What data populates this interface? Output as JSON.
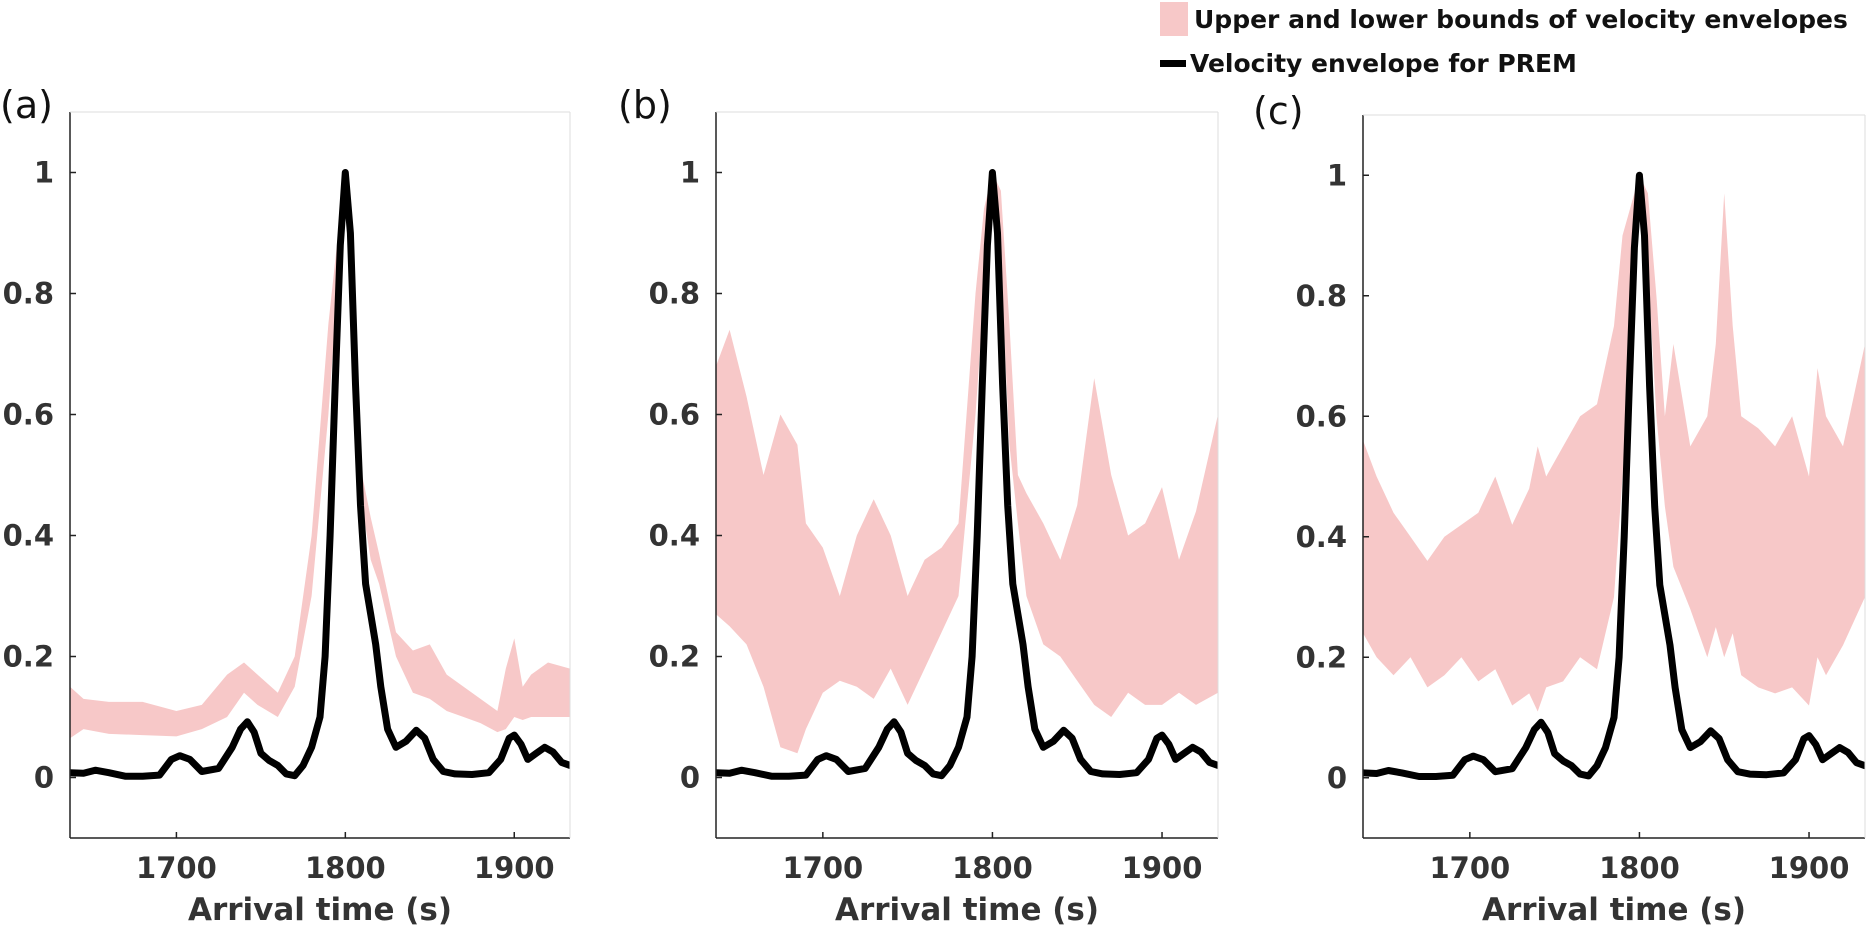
{
  "legend": {
    "band_label": "Upper and lower bounds of velocity envelopes",
    "line_label": "Velocity envelope for PREM"
  },
  "colors": {
    "band": "#f7c8c8",
    "line": "#000000",
    "axis": "#222222",
    "text": "#333333"
  },
  "chart_data": [
    {
      "type": "area",
      "panel_label": "(a)",
      "xlabel": "Arrival time (s)",
      "ylabel": "",
      "xlim": [
        1637,
        1933
      ],
      "ylim": [
        -0.1,
        1.1
      ],
      "xticks": [
        1700,
        1800,
        1900
      ],
      "yticks": [
        0,
        0.2,
        0.4,
        0.6,
        0.8,
        1
      ],
      "ytick_labels": [
        "0",
        "0.2",
        "0.4",
        "0.6",
        "0.8",
        "1"
      ],
      "series": [
        {
          "name": "Upper and lower bounds of velocity envelopes",
          "kind": "band",
          "x": [
            1637,
            1645,
            1660,
            1680,
            1700,
            1715,
            1730,
            1740,
            1748,
            1760,
            1770,
            1780,
            1790,
            1795,
            1800,
            1805,
            1810,
            1815,
            1820,
            1830,
            1840,
            1850,
            1860,
            1870,
            1880,
            1890,
            1895,
            1900,
            1905,
            1910,
            1920,
            1933
          ],
          "lower": [
            0.065,
            0.08,
            0.072,
            0.07,
            0.068,
            0.08,
            0.1,
            0.14,
            0.12,
            0.1,
            0.15,
            0.3,
            0.6,
            0.8,
            0.95,
            0.75,
            0.45,
            0.36,
            0.32,
            0.2,
            0.14,
            0.13,
            0.11,
            0.1,
            0.09,
            0.075,
            0.08,
            0.1,
            0.095,
            0.1,
            0.1,
            0.1
          ],
          "upper": [
            0.15,
            0.13,
            0.125,
            0.125,
            0.11,
            0.12,
            0.17,
            0.19,
            0.17,
            0.14,
            0.2,
            0.4,
            0.75,
            0.88,
            0.99,
            0.85,
            0.5,
            0.43,
            0.37,
            0.24,
            0.21,
            0.22,
            0.17,
            0.15,
            0.13,
            0.11,
            0.18,
            0.23,
            0.15,
            0.17,
            0.19,
            0.18
          ]
        },
        {
          "name": "Velocity envelope for PREM",
          "kind": "line",
          "x": [
            1637,
            1645,
            1652,
            1660,
            1670,
            1680,
            1690,
            1697,
            1702,
            1708,
            1715,
            1725,
            1733,
            1738,
            1742,
            1746,
            1750,
            1755,
            1760,
            1765,
            1770,
            1775,
            1780,
            1785,
            1788,
            1791,
            1794,
            1797,
            1800,
            1803,
            1806,
            1809,
            1812,
            1815,
            1818,
            1821,
            1825,
            1830,
            1836,
            1842,
            1847,
            1852,
            1858,
            1865,
            1875,
            1885,
            1892,
            1897,
            1900,
            1904,
            1908,
            1913,
            1918,
            1923,
            1928,
            1933
          ],
          "y": [
            0.008,
            0.007,
            0.012,
            0.008,
            0.002,
            0.002,
            0.004,
            0.03,
            0.036,
            0.03,
            0.01,
            0.015,
            0.05,
            0.08,
            0.092,
            0.075,
            0.04,
            0.028,
            0.02,
            0.006,
            0.003,
            0.02,
            0.05,
            0.1,
            0.2,
            0.4,
            0.65,
            0.88,
            1.0,
            0.9,
            0.65,
            0.45,
            0.32,
            0.27,
            0.22,
            0.15,
            0.08,
            0.05,
            0.06,
            0.078,
            0.065,
            0.03,
            0.01,
            0.006,
            0.005,
            0.008,
            0.03,
            0.065,
            0.07,
            0.055,
            0.03,
            0.04,
            0.05,
            0.042,
            0.025,
            0.02
          ]
        }
      ]
    },
    {
      "type": "area",
      "panel_label": "(b)",
      "xlabel": "Arrival time (s)",
      "ylabel": "",
      "xlim": [
        1637,
        1933
      ],
      "ylim": [
        -0.1,
        1.1
      ],
      "xticks": [
        1700,
        1800,
        1900
      ],
      "yticks": [
        0,
        0.2,
        0.4,
        0.6,
        0.8,
        1
      ],
      "ytick_labels": [
        "0",
        "0.2",
        "0.4",
        "0.6",
        "0.8",
        "1"
      ],
      "series": [
        {
          "name": "Upper and lower bounds of velocity envelopes",
          "kind": "band",
          "x": [
            1637,
            1645,
            1655,
            1665,
            1675,
            1685,
            1690,
            1700,
            1710,
            1720,
            1730,
            1740,
            1750,
            1760,
            1770,
            1780,
            1790,
            1795,
            1800,
            1805,
            1810,
            1815,
            1820,
            1830,
            1840,
            1850,
            1860,
            1870,
            1880,
            1890,
            1900,
            1910,
            1920,
            1933
          ],
          "lower": [
            0.27,
            0.25,
            0.22,
            0.15,
            0.05,
            0.04,
            0.08,
            0.14,
            0.16,
            0.15,
            0.13,
            0.18,
            0.12,
            0.18,
            0.24,
            0.3,
            0.6,
            0.8,
            0.97,
            0.85,
            0.55,
            0.42,
            0.3,
            0.22,
            0.2,
            0.16,
            0.12,
            0.1,
            0.14,
            0.12,
            0.12,
            0.14,
            0.12,
            0.14
          ],
          "upper": [
            0.68,
            0.74,
            0.63,
            0.5,
            0.6,
            0.55,
            0.42,
            0.38,
            0.3,
            0.4,
            0.46,
            0.4,
            0.3,
            0.36,
            0.38,
            0.42,
            0.8,
            0.94,
            1.0,
            0.97,
            0.75,
            0.5,
            0.47,
            0.42,
            0.36,
            0.45,
            0.66,
            0.5,
            0.4,
            0.42,
            0.48,
            0.36,
            0.44,
            0.6
          ]
        },
        {
          "name": "Velocity envelope for PREM",
          "kind": "line",
          "x": [
            1637,
            1645,
            1652,
            1660,
            1670,
            1680,
            1690,
            1697,
            1702,
            1708,
            1715,
            1725,
            1733,
            1738,
            1742,
            1746,
            1750,
            1755,
            1760,
            1765,
            1770,
            1775,
            1780,
            1785,
            1788,
            1791,
            1794,
            1797,
            1800,
            1803,
            1806,
            1809,
            1812,
            1815,
            1818,
            1821,
            1825,
            1830,
            1836,
            1842,
            1847,
            1852,
            1858,
            1865,
            1875,
            1885,
            1892,
            1897,
            1900,
            1904,
            1908,
            1913,
            1918,
            1923,
            1928,
            1933
          ],
          "y": [
            0.008,
            0.007,
            0.012,
            0.008,
            0.002,
            0.002,
            0.004,
            0.03,
            0.036,
            0.03,
            0.01,
            0.015,
            0.05,
            0.08,
            0.092,
            0.075,
            0.04,
            0.028,
            0.02,
            0.006,
            0.003,
            0.02,
            0.05,
            0.1,
            0.2,
            0.4,
            0.65,
            0.88,
            1.0,
            0.9,
            0.65,
            0.45,
            0.32,
            0.27,
            0.22,
            0.15,
            0.08,
            0.05,
            0.06,
            0.078,
            0.065,
            0.03,
            0.01,
            0.006,
            0.005,
            0.008,
            0.03,
            0.065,
            0.07,
            0.055,
            0.03,
            0.04,
            0.05,
            0.042,
            0.025,
            0.02
          ]
        }
      ]
    },
    {
      "type": "area",
      "panel_label": "(c)",
      "xlabel": "Arrival time (s)",
      "ylabel": "",
      "xlim": [
        1637,
        1933
      ],
      "ylim": [
        -0.1,
        1.1
      ],
      "xticks": [
        1700,
        1800,
        1900
      ],
      "yticks": [
        0,
        0.2,
        0.4,
        0.6,
        0.8,
        1
      ],
      "ytick_labels": [
        "0",
        "0.2",
        "0.4",
        "0.6",
        "0.8",
        "1"
      ],
      "series": [
        {
          "name": "Upper and lower bounds of velocity envelopes",
          "kind": "band",
          "x": [
            1637,
            1645,
            1655,
            1665,
            1675,
            1685,
            1695,
            1705,
            1715,
            1725,
            1735,
            1740,
            1745,
            1755,
            1765,
            1775,
            1785,
            1790,
            1795,
            1800,
            1805,
            1810,
            1815,
            1820,
            1830,
            1840,
            1845,
            1850,
            1855,
            1860,
            1870,
            1880,
            1890,
            1900,
            1905,
            1910,
            1920,
            1933
          ],
          "lower": [
            0.24,
            0.2,
            0.17,
            0.2,
            0.15,
            0.17,
            0.2,
            0.16,
            0.18,
            0.12,
            0.14,
            0.11,
            0.15,
            0.16,
            0.2,
            0.18,
            0.3,
            0.5,
            0.75,
            0.96,
            0.85,
            0.6,
            0.45,
            0.35,
            0.28,
            0.2,
            0.25,
            0.2,
            0.24,
            0.17,
            0.15,
            0.14,
            0.15,
            0.12,
            0.2,
            0.17,
            0.22,
            0.3
          ],
          "upper": [
            0.56,
            0.5,
            0.44,
            0.4,
            0.36,
            0.4,
            0.42,
            0.44,
            0.5,
            0.42,
            0.48,
            0.55,
            0.5,
            0.55,
            0.6,
            0.62,
            0.75,
            0.9,
            0.95,
            1.0,
            0.97,
            0.8,
            0.6,
            0.72,
            0.55,
            0.6,
            0.72,
            0.97,
            0.75,
            0.6,
            0.58,
            0.55,
            0.6,
            0.5,
            0.68,
            0.6,
            0.55,
            0.72
          ]
        },
        {
          "name": "Velocity envelope for PREM",
          "kind": "line",
          "x": [
            1637,
            1645,
            1652,
            1660,
            1670,
            1680,
            1690,
            1697,
            1702,
            1708,
            1715,
            1725,
            1733,
            1738,
            1742,
            1746,
            1750,
            1755,
            1760,
            1765,
            1770,
            1775,
            1780,
            1785,
            1788,
            1791,
            1794,
            1797,
            1800,
            1803,
            1806,
            1809,
            1812,
            1815,
            1818,
            1821,
            1825,
            1830,
            1836,
            1842,
            1847,
            1852,
            1858,
            1865,
            1875,
            1885,
            1892,
            1897,
            1900,
            1904,
            1908,
            1913,
            1918,
            1923,
            1928,
            1933
          ],
          "y": [
            0.008,
            0.007,
            0.012,
            0.008,
            0.002,
            0.002,
            0.004,
            0.03,
            0.036,
            0.03,
            0.01,
            0.015,
            0.05,
            0.08,
            0.092,
            0.075,
            0.04,
            0.028,
            0.02,
            0.006,
            0.003,
            0.02,
            0.05,
            0.1,
            0.2,
            0.4,
            0.65,
            0.88,
            1.0,
            0.9,
            0.65,
            0.45,
            0.32,
            0.27,
            0.22,
            0.15,
            0.08,
            0.05,
            0.06,
            0.078,
            0.065,
            0.03,
            0.01,
            0.006,
            0.005,
            0.008,
            0.03,
            0.065,
            0.07,
            0.055,
            0.03,
            0.04,
            0.05,
            0.042,
            0.025,
            0.02
          ]
        }
      ]
    }
  ]
}
